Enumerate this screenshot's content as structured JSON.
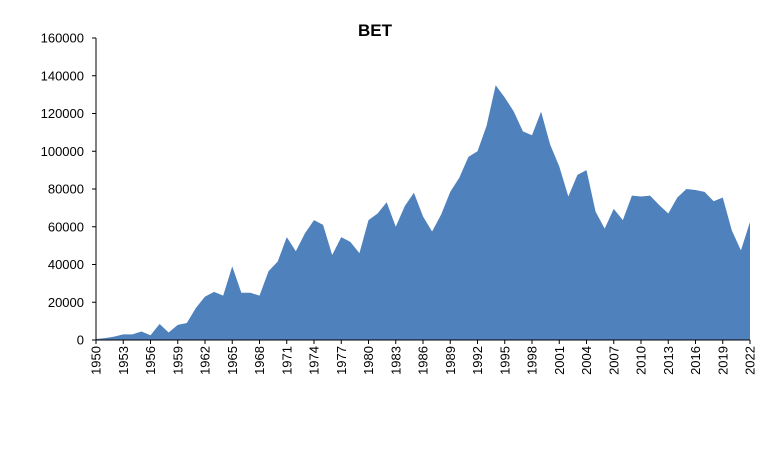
{
  "chart_data": {
    "type": "area",
    "title": "BET",
    "xlabel": "",
    "ylabel": "",
    "ylim": [
      0,
      160000
    ],
    "yticks": [
      0,
      20000,
      40000,
      60000,
      80000,
      100000,
      120000,
      140000,
      160000
    ],
    "xlim": [
      1950,
      2022
    ],
    "xticks": [
      1950,
      1953,
      1956,
      1959,
      1962,
      1965,
      1968,
      1971,
      1974,
      1977,
      1980,
      1983,
      1986,
      1989,
      1992,
      1995,
      1998,
      2001,
      2004,
      2007,
      2010,
      2013,
      2016,
      2019,
      2022
    ],
    "grid": false,
    "legend": "none",
    "color": "#4F81BD",
    "series": [
      {
        "x": [
          1950,
          1951,
          1952,
          1953,
          1954,
          1955,
          1956,
          1957,
          1958,
          1959,
          1960,
          1961,
          1962,
          1963,
          1964,
          1965,
          1966,
          1967,
          1968,
          1969,
          1970,
          1971,
          1972,
          1973,
          1974,
          1975,
          1976,
          1977,
          1978,
          1979,
          1980,
          1981,
          1982,
          1983,
          1984,
          1985,
          1986,
          1987,
          1988,
          1989,
          1990,
          1991,
          1992,
          1993,
          1994,
          1995,
          1996,
          1997,
          1998,
          1999,
          2000,
          2001,
          2002,
          2003,
          2004,
          2005,
          2006,
          2007,
          2008,
          2009,
          2010,
          2011,
          2012,
          2013,
          2014,
          2015,
          2016,
          2017,
          2018,
          2019,
          2020,
          2021,
          2022
        ],
        "values": [
          500,
          1000,
          1800,
          3000,
          3000,
          4500,
          2500,
          8500,
          4000,
          8000,
          9000,
          17000,
          23000,
          25500,
          23500,
          39000,
          25000,
          25000,
          23500,
          36500,
          41500,
          54500,
          47000,
          56500,
          63500,
          61000,
          45000,
          54500,
          52000,
          46000,
          63500,
          67000,
          73000,
          60000,
          71000,
          78000,
          65500,
          57500,
          66500,
          78500,
          86000,
          97000,
          100000,
          113500,
          135000,
          128500,
          121000,
          110500,
          108500,
          121000,
          103500,
          92000,
          76000,
          87500,
          90000,
          68000,
          59000,
          69500,
          63500,
          76500,
          76000,
          76500,
          71500,
          67000,
          75500,
          80000,
          79500,
          78500,
          73500,
          75500,
          58000,
          47500,
          62500
        ]
      }
    ]
  }
}
